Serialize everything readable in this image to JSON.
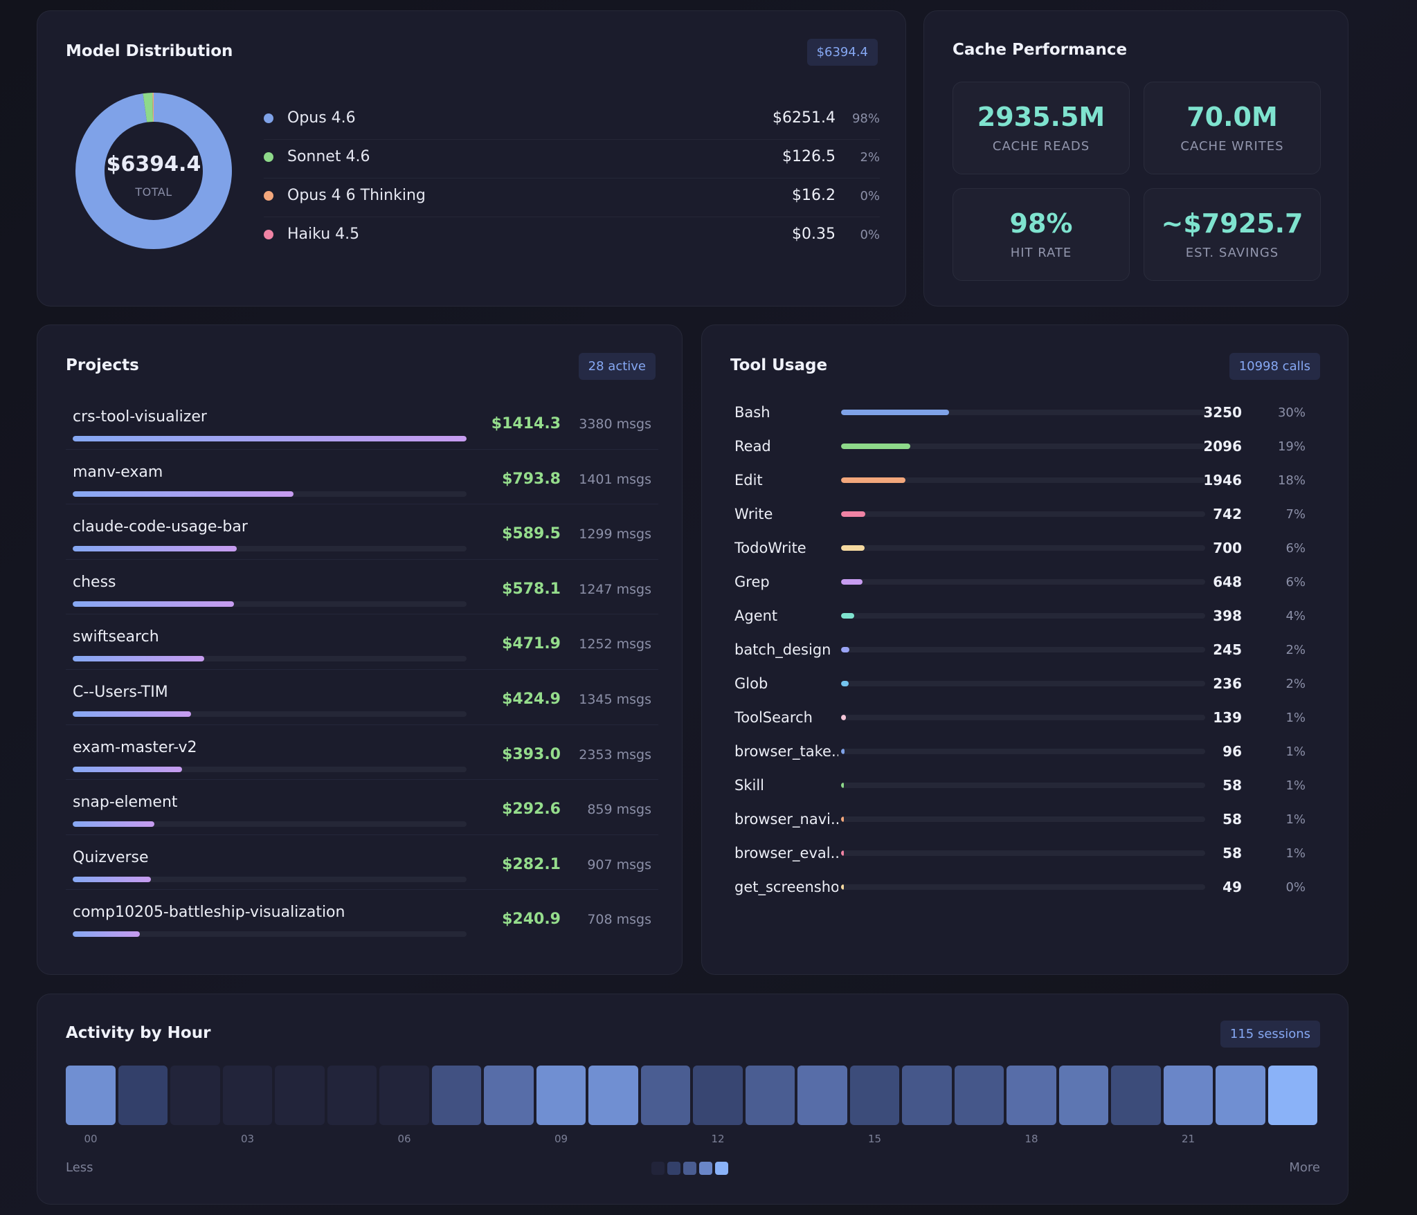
{
  "model_distribution": {
    "title": "Model Distribution",
    "badge": "$6394.4",
    "total_value": "$6394.4",
    "total_label": "TOTAL",
    "models": [
      {
        "name": "Opus 4.6",
        "cost": "$6251.4",
        "pct": "98%",
        "share": 0.9776,
        "color": "#7fa2e8"
      },
      {
        "name": "Sonnet 4.6",
        "cost": "$126.5",
        "pct": "2%",
        "share": 0.0198,
        "color": "#8ed98a"
      },
      {
        "name": "Opus 4 6 Thinking",
        "cost": "$16.2",
        "pct": "0%",
        "share": 0.0025,
        "color": "#f3a77c"
      },
      {
        "name": "Haiku 4.5",
        "cost": "$0.35",
        "pct": "0%",
        "share": 0.0001,
        "color": "#f083a4"
      }
    ]
  },
  "cache_performance": {
    "title": "Cache Performance",
    "stats": [
      {
        "value": "2935.5M",
        "label": "CACHE READS"
      },
      {
        "value": "70.0M",
        "label": "CACHE WRITES"
      },
      {
        "value": "98%",
        "label": "HIT RATE"
      },
      {
        "value": "~$7925.7",
        "label": "EST. SAVINGS"
      }
    ]
  },
  "projects": {
    "title": "Projects",
    "badge": "28 active",
    "items": [
      {
        "name": "crs-tool-visualizer",
        "cost": "$1414.3",
        "msgs": "3380 msgs",
        "share": 1.0
      },
      {
        "name": "manv-exam",
        "cost": "$793.8",
        "msgs": "1401 msgs",
        "share": 0.561
      },
      {
        "name": "claude-code-usage-bar",
        "cost": "$589.5",
        "msgs": "1299 msgs",
        "share": 0.417
      },
      {
        "name": "chess",
        "cost": "$578.1",
        "msgs": "1247 msgs",
        "share": 0.409
      },
      {
        "name": "swiftsearch",
        "cost": "$471.9",
        "msgs": "1252 msgs",
        "share": 0.334
      },
      {
        "name": "C--Users-TIM",
        "cost": "$424.9",
        "msgs": "1345 msgs",
        "share": 0.3
      },
      {
        "name": "exam-master-v2",
        "cost": "$393.0",
        "msgs": "2353 msgs",
        "share": 0.278
      },
      {
        "name": "snap-element",
        "cost": "$292.6",
        "msgs": "859 msgs",
        "share": 0.207
      },
      {
        "name": "Quizverse",
        "cost": "$282.1",
        "msgs": "907 msgs",
        "share": 0.199
      },
      {
        "name": "comp10205-battleship-visualization",
        "cost": "$240.9",
        "msgs": "708 msgs",
        "share": 0.17
      }
    ]
  },
  "tool_usage": {
    "title": "Tool Usage",
    "badge": "10998 calls",
    "items": [
      {
        "name": "Bash",
        "count": "3250",
        "pct": "30%",
        "share": 0.296,
        "color": "#7fa2e8"
      },
      {
        "name": "Read",
        "count": "2096",
        "pct": "19%",
        "share": 0.191,
        "color": "#8ed98a"
      },
      {
        "name": "Edit",
        "count": "1946",
        "pct": "18%",
        "share": 0.177,
        "color": "#f3a77c"
      },
      {
        "name": "Write",
        "count": "742",
        "pct": "7%",
        "share": 0.067,
        "color": "#f083a4"
      },
      {
        "name": "TodoWrite",
        "count": "700",
        "pct": "6%",
        "share": 0.064,
        "color": "#f5d9a0"
      },
      {
        "name": "Grep",
        "count": "648",
        "pct": "6%",
        "share": 0.059,
        "color": "#c79cf0"
      },
      {
        "name": "Agent",
        "count": "398",
        "pct": "4%",
        "share": 0.036,
        "color": "#7fe3cf"
      },
      {
        "name": "batch_design",
        "count": "245",
        "pct": "2%",
        "share": 0.022,
        "color": "#9aa4f5"
      },
      {
        "name": "Glob",
        "count": "236",
        "pct": "2%",
        "share": 0.021,
        "color": "#74c4ee"
      },
      {
        "name": "ToolSearch",
        "count": "139",
        "pct": "1%",
        "share": 0.013,
        "color": "#f5c6d8"
      },
      {
        "name": "browser_take...",
        "count": "96",
        "pct": "1%",
        "share": 0.009,
        "color": "#7fa2e8"
      },
      {
        "name": "Skill",
        "count": "58",
        "pct": "1%",
        "share": 0.005,
        "color": "#8ed98a"
      },
      {
        "name": "browser_navi...",
        "count": "58",
        "pct": "1%",
        "share": 0.005,
        "color": "#f3a77c"
      },
      {
        "name": "browser_eval...",
        "count": "58",
        "pct": "1%",
        "share": 0.005,
        "color": "#f083a4"
      },
      {
        "name": "get_screenshot",
        "count": "49",
        "pct": "0%",
        "share": 0.004,
        "color": "#f5d9a0"
      }
    ]
  },
  "activity": {
    "title": "Activity by Hour",
    "badge": "115 sessions",
    "less_label": "Less",
    "more_label": "More",
    "hour_tick_labels": [
      {
        "hour": 0,
        "label": "00"
      },
      {
        "hour": 3,
        "label": "03"
      },
      {
        "hour": 6,
        "label": "06"
      },
      {
        "hour": 9,
        "label": "09"
      },
      {
        "hour": 12,
        "label": "12"
      },
      {
        "hour": 15,
        "label": "15"
      },
      {
        "hour": 18,
        "label": "18"
      },
      {
        "hour": 21,
        "label": "21"
      }
    ],
    "levels": [
      0.8,
      0.25,
      0,
      0,
      0,
      0,
      0,
      0.4,
      0.6,
      0.8,
      0.8,
      0.5,
      0.3,
      0.5,
      0.6,
      0.35,
      0.45,
      0.45,
      0.6,
      0.65,
      0.35,
      0.75,
      0.8,
      1.0
    ],
    "scale_colors": [
      "#22243a",
      "#33406a",
      "#4a5d92",
      "#6a86c8",
      "#8ab2f8"
    ]
  }
}
